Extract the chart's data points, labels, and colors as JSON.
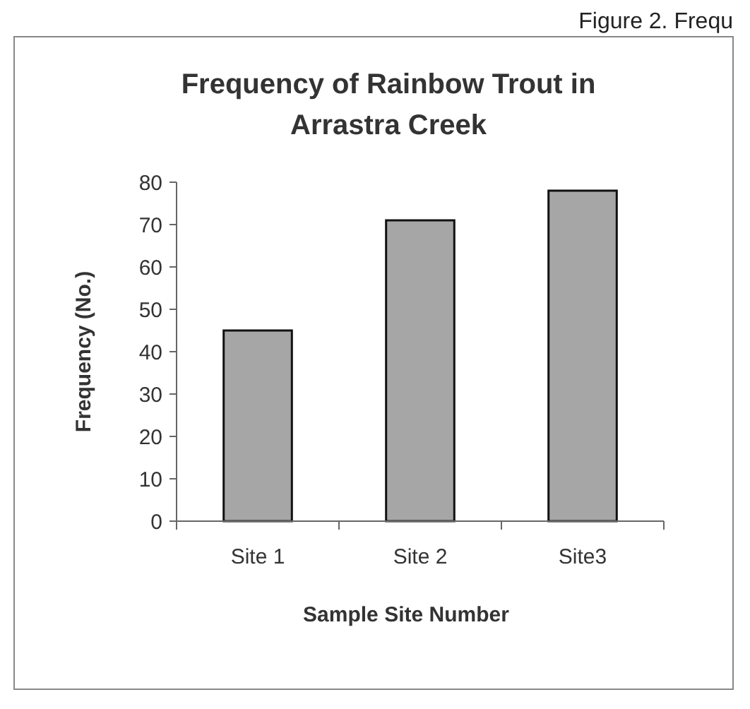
{
  "chart_data": {
    "type": "bar",
    "title": "Frequency of Rainbow Trout in\nArrastra Creek",
    "xlabel": "Sample Site Number",
    "ylabel": "Frequency (No.)",
    "categories": [
      "Site 1",
      "Site 2",
      "Site3"
    ],
    "values": [
      45,
      71,
      78
    ],
    "color": "#a6a6a6",
    "ylim": [
      0,
      80
    ],
    "yticks": [
      0,
      10,
      20,
      30,
      40,
      50,
      60,
      70,
      80
    ],
    "grid": false,
    "annotations": [
      "Figure 2. Frequ"
    ]
  }
}
